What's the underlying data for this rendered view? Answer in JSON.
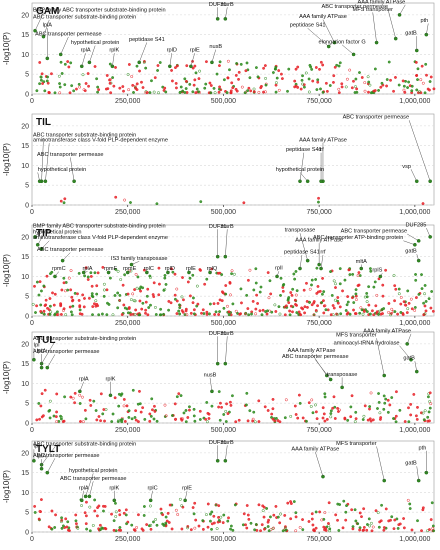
{
  "chart_data": [
    {
      "type": "scatter",
      "title": "GAM",
      "ylabel": "-log10(P)",
      "xlim": [
        0,
        1050000
      ],
      "ylim": [
        0,
        23
      ],
      "x_ticks": [
        0,
        250000,
        500000,
        750000,
        1000000
      ],
      "x_tick_labels": [
        "0",
        "250,000",
        "500,000",
        "750,000",
        "1,000,000"
      ],
      "y_ticks": [
        0,
        5,
        10,
        15,
        20
      ],
      "colors": {
        "primary": "#2e8b1f",
        "secondary": "#e8242a"
      },
      "seed": 11,
      "bg_points": 320,
      "bg_max": 8,
      "annotations": [
        {
          "text": "BMP family ABC transporter substrate-binding protein",
          "x": 8000,
          "y": 16,
          "lx": 30000,
          "ly": 20.9
        },
        {
          "text": "ABC transporter substrate-binding protein",
          "x": 30000,
          "y": 14.5,
          "lx": 45000,
          "ly": 19.1
        },
        {
          "text": "lplA",
          "x": 40000,
          "y": 9,
          "lx": 40000,
          "ly": 17.0
        },
        {
          "text": "ABC transporter permease",
          "x": 75000,
          "y": 10,
          "lx": 95000,
          "ly": 14.8
        },
        {
          "text": "hypothetical protein",
          "x": 150000,
          "y": 8,
          "lx": 165000,
          "ly": 12.6
        },
        {
          "text": "peptidase S41",
          "x": 280000,
          "y": 8,
          "lx": 300000,
          "ly": 13.4
        },
        {
          "text": "rplA",
          "x": 130000,
          "y": 7,
          "lx": 140000,
          "ly": 10.7
        },
        {
          "text": "rplK",
          "x": 210000,
          "y": 7,
          "lx": 215000,
          "ly": 10.7
        },
        {
          "text": "rplD",
          "x": 360000,
          "y": 7,
          "lx": 365000,
          "ly": 10.7
        },
        {
          "text": "rplE",
          "x": 415000,
          "y": 7,
          "lx": 425000,
          "ly": 10.7
        },
        {
          "text": "nusB",
          "x": 470000,
          "y": 8,
          "lx": 480000,
          "ly": 11.6
        },
        {
          "text": "DUF31",
          "x": 485000,
          "y": 19,
          "lx": 485000,
          "ly": 22.3
        },
        {
          "text": "msrB",
          "x": 505000,
          "y": 19,
          "lx": 510000,
          "ly": 22.3
        },
        {
          "text": "AAA family ATPase",
          "x": 790000,
          "y": 13,
          "lx": 760000,
          "ly": 19.2
        },
        {
          "text": "peptidase S41",
          "x": 775000,
          "y": 12,
          "lx": 720000,
          "ly": 17.0
        },
        {
          "text": "elongation factor G",
          "x": 840000,
          "y": 10,
          "lx": 810000,
          "ly": 12.8
        },
        {
          "text": "MFS transporter",
          "x": 900000,
          "y": 13,
          "lx": 890000,
          "ly": 21.0
        },
        {
          "text": "AAA family ATPase",
          "x": 960000,
          "y": 20,
          "lx": 975000,
          "ly": 22.9
        },
        {
          "text": "ABC transporter permease",
          "x": 950000,
          "y": 14,
          "lx": 930000,
          "ly": 21.7
        },
        {
          "text": "pth",
          "x": 1030000,
          "y": 15,
          "lx": 1035000,
          "ly": 18.2
        },
        {
          "text": "gatB",
          "x": 1005000,
          "y": 11,
          "lx": 1005000,
          "ly": 15.0
        }
      ]
    },
    {
      "type": "scatter",
      "title": "TIL",
      "ylabel": "-log10(P)",
      "xlim": [
        0,
        1050000
      ],
      "ylim": [
        0,
        23
      ],
      "x_ticks": [
        0,
        250000,
        500000,
        750000,
        1000000
      ],
      "x_tick_labels": [
        "0",
        "250,000",
        "500,000",
        "750,000",
        "1,000,000"
      ],
      "y_ticks": [
        0,
        5,
        10,
        15,
        20
      ],
      "colors": {
        "primary": "#2e8b1f",
        "secondary": "#e8242a"
      },
      "seed": 23,
      "bg_points": 12,
      "bg_max": 2,
      "annotations": [
        {
          "text": "ABC transporter permease",
          "x": 1040000,
          "y": 6,
          "lx": 985000,
          "ly": 21.8
        },
        {
          "text": "ABC transporter substrate-binding protein",
          "x": 25000,
          "y": 6,
          "lx": 30000,
          "ly": 17.3
        },
        {
          "text": "aminotransferase class V-fold PLP-dependent enzyme",
          "x": 35000,
          "y": 6,
          "lx": 45000,
          "ly": 16.0
        },
        {
          "text": "AAA family ATPase",
          "x": 760000,
          "y": 6,
          "lx": 760000,
          "ly": 16.1
        },
        {
          "text": "peptidase S41",
          "x": 700000,
          "y": 6,
          "lx": 710000,
          "ly": 13.6
        },
        {
          "text": "rrf",
          "x": 755000,
          "y": 6,
          "lx": 755000,
          "ly": 13.6
        },
        {
          "text": "ABC transporter permease",
          "x": 110000,
          "y": 6,
          "lx": 100000,
          "ly": 12.4
        },
        {
          "text": "hypothetical protein",
          "x": 20000,
          "y": 6,
          "lx": 15000,
          "ly": 8.6
        },
        {
          "text": "hypothetical protein",
          "x": 720000,
          "y": 6,
          "lx": 700000,
          "ly": 8.6
        },
        {
          "text": "vsp",
          "x": 1005000,
          "y": 6,
          "lx": 990000,
          "ly": 9.4
        }
      ]
    },
    {
      "type": "scatter",
      "title": "TIP",
      "ylabel": "-log10(P)",
      "xlim": [
        0,
        1050000
      ],
      "ylim": [
        0,
        23
      ],
      "x_ticks": [
        0,
        250000,
        500000,
        750000,
        1000000
      ],
      "x_tick_labels": [
        "0",
        "250,000",
        "500,000",
        "750,000",
        "1,000,000"
      ],
      "y_ticks": [
        0,
        5,
        10,
        15,
        20
      ],
      "colors": {
        "primary": "#2e8b1f",
        "secondary": "#e8242a"
      },
      "seed": 37,
      "bg_points": 520,
      "bg_max": 12,
      "annotations": [
        {
          "text": "BMP family ABC transporter substrate-binding protein",
          "x": 8000,
          "y": 20,
          "lx": 30000,
          "ly": 22.4
        },
        {
          "text": "hypothetical protein",
          "x": 15000,
          "y": 18,
          "lx": 30000,
          "ly": 20.9
        },
        {
          "text": "aminotransferase class V-fold PLP-dependent enzyme",
          "x": 25000,
          "y": 17,
          "lx": 45000,
          "ly": 19.4
        },
        {
          "text": "ABC transporter permease",
          "x": 80000,
          "y": 14,
          "lx": 100000,
          "ly": 16.4
        },
        {
          "text": "IS3 family transposase",
          "x": 260000,
          "y": 13,
          "lx": 280000,
          "ly": 14.2
        },
        {
          "text": "DUF31",
          "x": 485000,
          "y": 15,
          "lx": 485000,
          "ly": 22.3
        },
        {
          "text": "msrB",
          "x": 505000,
          "y": 15,
          "lx": 510000,
          "ly": 22.3
        },
        {
          "text": "rpmC",
          "x": 60000,
          "y": 10,
          "lx": 70000,
          "ly": 11.6
        },
        {
          "text": "rplA",
          "x": 135000,
          "y": 11,
          "lx": 145000,
          "ly": 11.6
        },
        {
          "text": "rpmF",
          "x": 200000,
          "y": 11,
          "lx": 205000,
          "ly": 11.6
        },
        {
          "text": "rpmE",
          "x": 250000,
          "y": 11,
          "lx": 255000,
          "ly": 11.6
        },
        {
          "text": "rplC",
          "x": 300000,
          "y": 11,
          "lx": 305000,
          "ly": 11.6
        },
        {
          "text": "rplD",
          "x": 355000,
          "y": 11,
          "lx": 360000,
          "ly": 11.6
        },
        {
          "text": "rplE",
          "x": 410000,
          "y": 11,
          "lx": 415000,
          "ly": 11.6
        },
        {
          "text": "rplQ",
          "x": 465000,
          "y": 11,
          "lx": 470000,
          "ly": 11.6
        },
        {
          "text": "transposase",
          "x": 720000,
          "y": 14,
          "lx": 700000,
          "ly": 21.3
        },
        {
          "text": "AAA family ATPase",
          "x": 750000,
          "y": 13,
          "lx": 750000,
          "ly": 18.8
        },
        {
          "text": "peptidase S41",
          "x": 700000,
          "y": 12,
          "lx": 705000,
          "ly": 15.8
        },
        {
          "text": "rrf",
          "x": 755000,
          "y": 12,
          "lx": 760000,
          "ly": 15.8
        },
        {
          "text": "rplI",
          "x": 640000,
          "y": 10,
          "lx": 645000,
          "ly": 11.7
        },
        {
          "text": "mltA",
          "x": 860000,
          "y": 12,
          "lx": 860000,
          "ly": 13.4
        },
        {
          "text": "rplS",
          "x": 910000,
          "y": 10,
          "lx": 915000,
          "ly": 11.2
        },
        {
          "text": "DUF285",
          "x": 1040000,
          "y": 20,
          "lx": 1030000,
          "ly": 22.6
        },
        {
          "text": "ABC transporter permease",
          "x": 1010000,
          "y": 19,
          "lx": 980000,
          "ly": 21.1
        },
        {
          "text": "ABC transporter ATP-binding protein",
          "x": 1000000,
          "y": 18,
          "lx": 970000,
          "ly": 19.4
        },
        {
          "text": "gatB",
          "x": 1010000,
          "y": 14,
          "lx": 1005000,
          "ly": 16.0
        }
      ]
    },
    {
      "type": "scatter",
      "title": "TUL",
      "ylabel": "-log10(P)",
      "xlim": [
        0,
        1050000
      ],
      "ylim": [
        0,
        23
      ],
      "x_ticks": [
        0,
        250000,
        500000,
        750000,
        1000000
      ],
      "x_tick_labels": [
        "0",
        "250,000",
        "500,000",
        "750,000",
        "1,000,000"
      ],
      "y_ticks": [
        0,
        5,
        10,
        15,
        20
      ],
      "colors": {
        "primary": "#2e8b1f",
        "secondary": "#e8242a"
      },
      "seed": 41,
      "bg_points": 260,
      "bg_max": 8,
      "annotations": [
        {
          "text": "ABC transporter substrate-binding protein",
          "x": 25000,
          "y": 15,
          "lx": 60000,
          "ly": 21.0
        },
        {
          "text": "ABC transporter permease",
          "x": 40000,
          "y": 14,
          "lx": 60000,
          "ly": 17.7
        },
        {
          "text": "lpl",
          "x": 5000,
          "y": 16,
          "lx": 5000,
          "ly": 19.3
        },
        {
          "text": "lplA",
          "x": 25000,
          "y": 14,
          "lx": 25000,
          "ly": 17.8
        },
        {
          "text": "rplA",
          "x": 125000,
          "y": 8,
          "lx": 135000,
          "ly": 10.8
        },
        {
          "text": "rplK",
          "x": 205000,
          "y": 7,
          "lx": 205000,
          "ly": 10.8
        },
        {
          "text": "DUF31",
          "x": 485000,
          "y": 15,
          "lx": 485000,
          "ly": 22.3
        },
        {
          "text": "msrB",
          "x": 505000,
          "y": 15,
          "lx": 510000,
          "ly": 22.3
        },
        {
          "text": "nusB",
          "x": 470000,
          "y": 8,
          "lx": 465000,
          "ly": 11.8
        },
        {
          "text": "MFS transporter",
          "x": 920000,
          "y": 12,
          "lx": 900000,
          "ly": 21.8
        },
        {
          "text": "AAA family ATPase",
          "x": 980000,
          "y": 20,
          "lx": 990000,
          "ly": 22.9
        },
        {
          "text": "AAA family ATPase",
          "x": 770000,
          "y": 12,
          "lx": 730000,
          "ly": 18.0
        },
        {
          "text": "ABC transporter permease",
          "x": 780000,
          "y": 11,
          "lx": 740000,
          "ly": 16.4
        },
        {
          "text": "aminoacyl-tRNA hydrolase",
          "x": 990000,
          "y": 16,
          "lx": 960000,
          "ly": 19.9
        },
        {
          "text": "transposase",
          "x": 810000,
          "y": 9,
          "lx": 810000,
          "ly": 11.9
        },
        {
          "text": "gatB",
          "x": 1005000,
          "y": 13,
          "lx": 1000000,
          "ly": 16.0
        }
      ]
    },
    {
      "type": "scatter",
      "title": "TYLT",
      "ylabel": "-log10(P)",
      "xlim": [
        0,
        1050000
      ],
      "ylim": [
        0,
        23
      ],
      "x_ticks": [
        0,
        250000,
        500000,
        750000,
        1000000
      ],
      "x_tick_labels": [
        "0",
        "250,000",
        "500,000",
        "750,000",
        "1,000,000"
      ],
      "y_ticks": [
        0,
        5,
        10,
        15,
        20
      ],
      "colors": {
        "primary": "#2e8b1f",
        "secondary": "#e8242a"
      },
      "seed": 53,
      "bg_points": 300,
      "bg_max": 8,
      "annotations": [
        {
          "text": "lpl",
          "x": 5000,
          "y": 18,
          "lx": 5000,
          "ly": 21.3
        },
        {
          "text": "ABC transporter substrate-binding protein",
          "x": 25000,
          "y": 17,
          "lx": 60000,
          "ly": 21.9
        },
        {
          "text": "ABC transporter permease",
          "x": 40000,
          "y": 15,
          "lx": 60000,
          "ly": 19.0
        },
        {
          "text": "lplA",
          "x": 25000,
          "y": 16,
          "lx": 25000,
          "ly": 18.8
        },
        {
          "text": "hypothetical protein",
          "x": 140000,
          "y": 9,
          "lx": 160000,
          "ly": 15.2
        },
        {
          "text": "ABC transporter permease",
          "x": 150000,
          "y": 9,
          "lx": 160000,
          "ly": 13.2
        },
        {
          "text": "rplA",
          "x": 130000,
          "y": 8,
          "lx": 135000,
          "ly": 10.8
        },
        {
          "text": "rplK",
          "x": 215000,
          "y": 8,
          "lx": 215000,
          "ly": 10.8
        },
        {
          "text": "rplC",
          "x": 310000,
          "y": 8,
          "lx": 315000,
          "ly": 10.8
        },
        {
          "text": "rplE",
          "x": 400000,
          "y": 8,
          "lx": 405000,
          "ly": 10.8
        },
        {
          "text": "DUF31",
          "x": 485000,
          "y": 18,
          "lx": 485000,
          "ly": 22.3
        },
        {
          "text": "msrB",
          "x": 505000,
          "y": 18,
          "lx": 510000,
          "ly": 22.3
        },
        {
          "text": "AAA family ATPase",
          "x": 760000,
          "y": 14,
          "lx": 740000,
          "ly": 20.6
        },
        {
          "text": "MFS transporter",
          "x": 920000,
          "y": 13,
          "lx": 900000,
          "ly": 22.0
        },
        {
          "text": "pth",
          "x": 1030000,
          "y": 15,
          "lx": 1030000,
          "ly": 20.9
        },
        {
          "text": "gatB",
          "x": 1010000,
          "y": 13,
          "lx": 1005000,
          "ly": 17.0
        }
      ]
    }
  ]
}
